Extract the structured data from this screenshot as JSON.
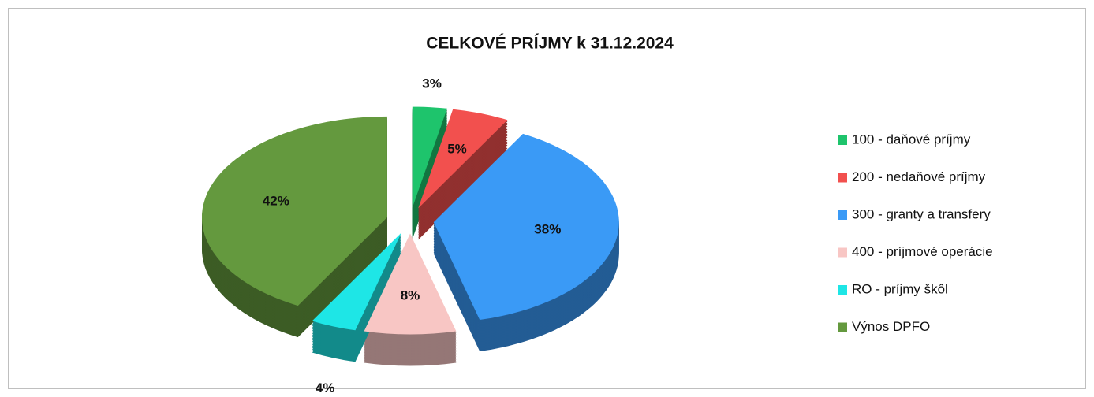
{
  "chart_data": {
    "type": "pie",
    "title": "CELKOVÉ  PRÍJMY  k 31.12.2024",
    "categories": [
      "100 - daňové príjmy",
      "200 - nedaňové príjmy",
      "300 - granty a transfery",
      "400 - príjmové operácie",
      "RO - príjmy škôl",
      "Výnos DPFO"
    ],
    "values": [
      3,
      5,
      38,
      8,
      4,
      42
    ],
    "value_labels": [
      "3%",
      "5%",
      "38%",
      "8%",
      "4%",
      "42%"
    ],
    "colors": [
      "#1ec46c",
      "#f2504e",
      "#3a9af6",
      "#f8c6c4",
      "#1ee6e6",
      "#64993e"
    ],
    "legend": "right"
  }
}
